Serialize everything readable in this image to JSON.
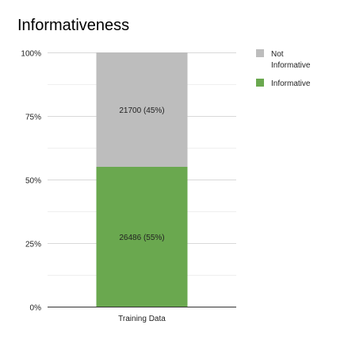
{
  "chart_data": {
    "type": "bar",
    "stacked": true,
    "normalized": true,
    "title": "Informativeness",
    "xlabel": "",
    "ylabel": "",
    "ylim": [
      0,
      100
    ],
    "y_ticks": [
      "0%",
      "25%",
      "50%",
      "75%",
      "100%"
    ],
    "categories": [
      "Training Data"
    ],
    "series": [
      {
        "name": "Informative",
        "values": [
          26486
        ],
        "percent": [
          55
        ],
        "data_labels": [
          "26486 (55%)"
        ],
        "color": "#6aa84f"
      },
      {
        "name": "Not Informative",
        "values": [
          21700
        ],
        "percent": [
          45
        ],
        "data_labels": [
          "21700 (45%)"
        ],
        "color": "#bdbdbd"
      }
    ],
    "legend": {
      "position": "right",
      "items": [
        {
          "label_lines": [
            "Not",
            "Informative"
          ],
          "color": "#bdbdbd"
        },
        {
          "label_lines": [
            "Informative"
          ],
          "color": "#6aa84f"
        }
      ]
    },
    "gridlines": true
  }
}
